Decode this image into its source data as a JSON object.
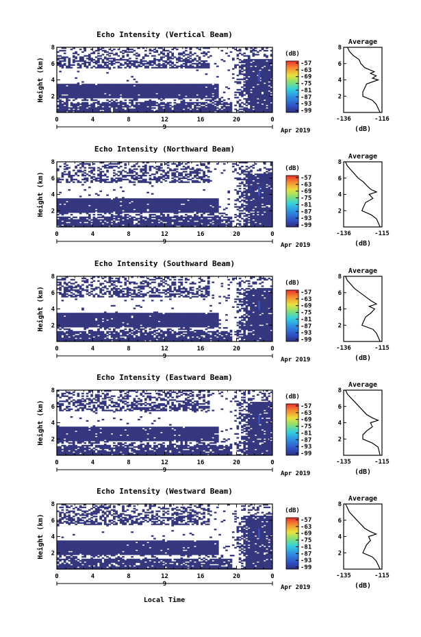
{
  "figure": {
    "xlabel_shared": "Local Time"
  },
  "cbar": {
    "unit": "(dB)",
    "ticks": [
      "-57",
      "-63",
      "-69",
      "-75",
      "-81",
      "-87",
      "-93",
      "-99"
    ]
  },
  "avg": {
    "title": "Average",
    "xlabel": "(dB)"
  },
  "chart_data": [
    {
      "type": "heatmap",
      "title": "Echo Intensity (Vertical Beam)",
      "ylabel": "Height (km)",
      "xticks": [
        "0",
        "4",
        "8",
        "12",
        "16",
        "20",
        "0"
      ],
      "date_tick": "9",
      "date_label": "Apr 2019",
      "yticks": [
        "2",
        "4",
        "6",
        "8"
      ],
      "xlim": [
        0,
        24
      ],
      "ylim": [
        0,
        8
      ],
      "profile": {
        "title": "Average",
        "xlabel": "(dB)",
        "xticks": [
          "-136",
          "-116"
        ],
        "xlim": [
          -136,
          -116
        ],
        "heights": [
          0.0,
          1.0,
          1.5,
          2.0,
          2.5,
          3.0,
          3.5,
          4.0,
          4.2,
          4.5,
          4.8,
          5.0,
          5.5,
          6.0,
          6.5,
          7.0,
          7.5,
          8.0
        ],
        "values": [
          -117,
          -119,
          -121,
          -126,
          -126,
          -125,
          -124,
          -118,
          -121,
          -119,
          -122,
          -120,
          -125,
          -127,
          -128,
          -131,
          -133,
          -134
        ]
      }
    },
    {
      "type": "heatmap",
      "title": "Echo Intensity (Northward Beam)",
      "ylabel": "Height (km)",
      "xticks": [
        "0",
        "4",
        "8",
        "12",
        "16",
        "20",
        "0"
      ],
      "date_tick": "9",
      "date_label": "Apr 2019",
      "yticks": [
        "2",
        "4",
        "6",
        "8"
      ],
      "xlim": [
        0,
        24
      ],
      "ylim": [
        0,
        8
      ],
      "profile": {
        "title": "Average",
        "xlabel": "(dB)",
        "xticks": [
          "-136",
          "-115"
        ],
        "xlim": [
          -136,
          -115
        ],
        "heights": [
          0.0,
          1.0,
          1.5,
          2.0,
          2.5,
          3.0,
          3.5,
          4.0,
          4.3,
          4.6,
          5.0,
          5.5,
          6.0,
          6.5,
          7.0,
          7.5,
          8.0
        ],
        "values": [
          -116,
          -118,
          -121,
          -126,
          -125,
          -124,
          -120,
          -122,
          -118,
          -121,
          -123,
          -125,
          -128,
          -130,
          -132,
          -134,
          -135
        ]
      }
    },
    {
      "type": "heatmap",
      "title": "Echo Intensity (Southward Beam)",
      "ylabel": "Height (km)",
      "xticks": [
        "0",
        "4",
        "8",
        "12",
        "16",
        "20",
        "0"
      ],
      "date_tick": "9",
      "date_label": "Apr 2019",
      "yticks": [
        "2",
        "4",
        "6",
        "8"
      ],
      "xlim": [
        0,
        24
      ],
      "ylim": [
        0,
        8
      ],
      "profile": {
        "title": "Average",
        "xlabel": "(dB)",
        "xticks": [
          "-136",
          "-115"
        ],
        "xlim": [
          -136,
          -115
        ],
        "heights": [
          0.0,
          1.0,
          1.5,
          2.0,
          2.5,
          3.0,
          3.5,
          4.0,
          4.3,
          4.6,
          5.0,
          5.5,
          6.0,
          6.5,
          7.0,
          7.5,
          8.0
        ],
        "values": [
          -116,
          -118,
          -120,
          -126,
          -125,
          -124,
          -121,
          -119,
          -122,
          -118,
          -121,
          -124,
          -127,
          -130,
          -132,
          -134,
          -135
        ]
      }
    },
    {
      "type": "heatmap",
      "title": "Echo Intensity (Eastward Beam)",
      "ylabel": "Height (km)",
      "xticks": [
        "0",
        "4",
        "8",
        "12",
        "16",
        "20",
        "0"
      ],
      "date_tick": "9",
      "date_label": "Apr 2019",
      "yticks": [
        "2",
        "4",
        "6",
        "8"
      ],
      "xlim": [
        0,
        24
      ],
      "ylim": [
        0,
        8
      ],
      "profile": {
        "title": "Average",
        "xlabel": "(dB)",
        "xticks": [
          "-135",
          "-115"
        ],
        "xlim": [
          -135,
          -115
        ],
        "heights": [
          0.0,
          1.0,
          1.5,
          2.0,
          2.5,
          3.0,
          3.5,
          4.0,
          4.3,
          4.6,
          5.0,
          5.5,
          6.0,
          6.5,
          7.0,
          7.5,
          8.0
        ],
        "values": [
          -116,
          -117,
          -120,
          -125,
          -125,
          -123,
          -120,
          -121,
          -117,
          -120,
          -123,
          -125,
          -127,
          -129,
          -131,
          -133,
          -134
        ]
      }
    },
    {
      "type": "heatmap",
      "title": "Echo Intensity (Westward Beam)",
      "ylabel": "Height (km)",
      "xticks": [
        "0",
        "4",
        "8",
        "12",
        "16",
        "20",
        "0"
      ],
      "date_tick": "9",
      "date_label": "Apr 2019",
      "yticks": [
        "2",
        "4",
        "6",
        "8"
      ],
      "xlim": [
        0,
        24
      ],
      "ylim": [
        0,
        8
      ],
      "profile": {
        "title": "Average",
        "xlabel": "(dB)",
        "xticks": [
          "-135",
          "-115"
        ],
        "xlim": [
          -135,
          -115
        ],
        "heights": [
          0.0,
          1.0,
          1.5,
          2.0,
          2.5,
          3.0,
          3.5,
          4.0,
          4.3,
          4.6,
          5.0,
          5.5,
          6.0,
          6.5,
          7.0,
          7.5,
          8.0
        ],
        "values": [
          -116,
          -118,
          -120,
          -125,
          -124,
          -123,
          -121,
          -122,
          -118,
          -121,
          -124,
          -126,
          -128,
          -130,
          -132,
          -133,
          -134
        ]
      }
    }
  ]
}
